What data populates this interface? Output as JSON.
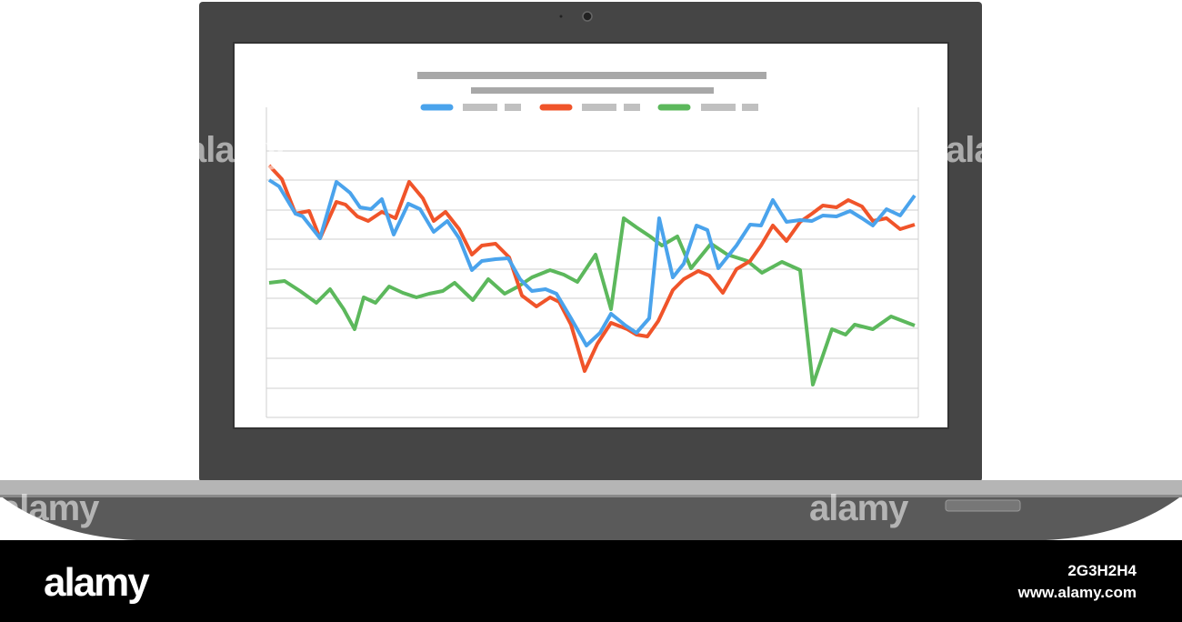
{
  "watermark": "alamy",
  "footer": {
    "logo": "alamy",
    "image_id": "2G3H2H4",
    "url": "www.alamy.com"
  }
}
